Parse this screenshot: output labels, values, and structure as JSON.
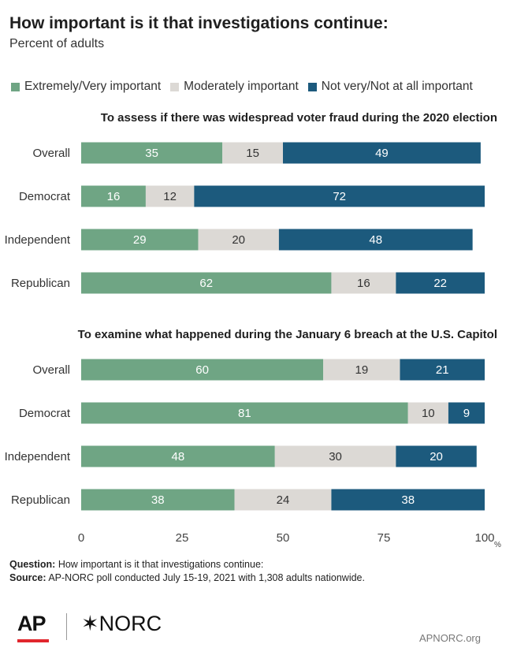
{
  "title": "How important is it that investigations continue:",
  "subtitle": "Percent of adults",
  "legend": [
    {
      "label": "Extremely/Very important",
      "color": "#6fa584"
    },
    {
      "label": "Moderately important",
      "color": "#dcd9d5"
    },
    {
      "label": "Not very/Not at all important",
      "color": "#1c5a7d"
    }
  ],
  "chart_data": {
    "type": "bar",
    "orientation": "horizontal",
    "stacked": true,
    "categories": [
      "Overall",
      "Democrat",
      "Independent",
      "Republican"
    ],
    "series_names": [
      "Extremely/Very important",
      "Moderately important",
      "Not very/Not at all important"
    ],
    "colors": [
      "#6fa584",
      "#dcd9d5",
      "#1c5a7d"
    ],
    "panels": [
      {
        "title": "To assess if there was widespread voter fraud during the 2020 election",
        "rows": [
          {
            "label": "Overall",
            "values": [
              35,
              15,
              49
            ]
          },
          {
            "label": "Democrat",
            "values": [
              16,
              12,
              72
            ]
          },
          {
            "label": "Independent",
            "values": [
              29,
              20,
              48
            ]
          },
          {
            "label": "Republican",
            "values": [
              62,
              16,
              22
            ]
          }
        ]
      },
      {
        "title": "To examine what happened during the January 6 breach at the U.S. Capitol",
        "rows": [
          {
            "label": "Overall",
            "values": [
              60,
              19,
              21
            ]
          },
          {
            "label": "Democrat",
            "values": [
              81,
              10,
              9
            ]
          },
          {
            "label": "Independent",
            "values": [
              48,
              30,
              20
            ]
          },
          {
            "label": "Republican",
            "values": [
              38,
              24,
              38
            ]
          }
        ]
      }
    ],
    "xlim": [
      0,
      100
    ],
    "xticks": [
      "0",
      "25",
      "50",
      "75",
      "100"
    ],
    "xunit": "%"
  },
  "footer": {
    "question_label": "Question:",
    "question_text": "How important is it that investigations continue:",
    "source_label": "Source:",
    "source_text": "AP-NORC poll conducted July 15-19, 2021 with 1,308 adults nationwide."
  },
  "logos": {
    "ap": "AP",
    "norc": "✶NORC"
  },
  "url": "APNORC.org"
}
